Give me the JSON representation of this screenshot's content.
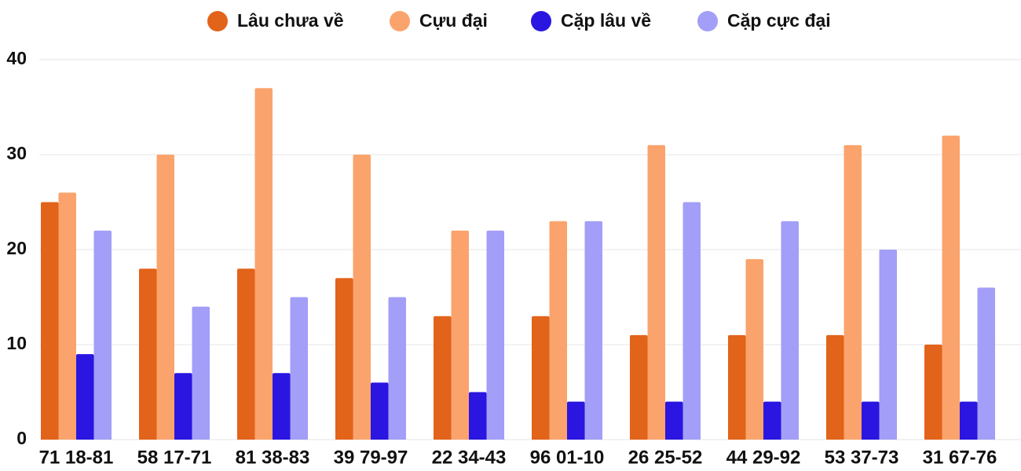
{
  "chart_data": {
    "type": "bar",
    "categories": [
      "71 18-81",
      "58 17-71",
      "81 38-83",
      "39 79-97",
      "22 34-43",
      "96 01-10",
      "26 25-52",
      "44 29-92",
      "53 37-73",
      "31 67-76"
    ],
    "series": [
      {
        "name": "Lâu chưa về",
        "color": "#e2631a",
        "values": [
          25,
          18,
          18,
          17,
          13,
          13,
          11,
          11,
          11,
          10
        ]
      },
      {
        "name": "Cựu đại",
        "color": "#fba36c",
        "values": [
          26,
          30,
          37,
          30,
          22,
          23,
          31,
          19,
          31,
          32
        ]
      },
      {
        "name": "Cặp lâu về",
        "color": "#2a16e0",
        "values": [
          9,
          7,
          7,
          6,
          5,
          4,
          4,
          4,
          4,
          4
        ]
      },
      {
        "name": "Cặp cực đại",
        "color": "#a39ef7",
        "values": [
          22,
          14,
          15,
          15,
          22,
          23,
          25,
          23,
          20,
          16
        ]
      }
    ],
    "ylim": [
      0,
      40
    ],
    "yticks": [
      0,
      10,
      20,
      30,
      40
    ],
    "grid": true,
    "legend": "top"
  }
}
